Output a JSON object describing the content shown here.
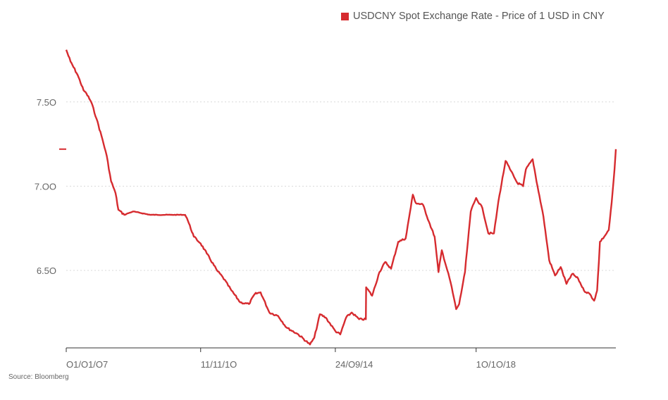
{
  "legend": {
    "label": "USDCNY Spot Exchange Rate - Price of 1 USD in CNY"
  },
  "source": "Source: Bloomberg",
  "colors": {
    "series": "#d62b2f",
    "axis": "#333333",
    "grid": "#d9d9d9",
    "text": "#666666"
  },
  "chart_data": {
    "type": "line",
    "title": "",
    "xlabel": "",
    "ylabel": "",
    "ylim": [
      6.04,
      7.98
    ],
    "xlim": [
      "2007-01-01",
      "2023-01-01"
    ],
    "y_ticks": [
      {
        "value": 6.5,
        "label": "6.5O"
      },
      {
        "value": 7.0,
        "label": "7.OO"
      },
      {
        "value": 7.5,
        "label": "7.5O"
      }
    ],
    "x_ticks": [
      {
        "date": "2007-01-01",
        "label": "O1/O1/O7"
      },
      {
        "date": "2010-11-11",
        "label": "11/11/1O"
      },
      {
        "date": "2014-09-24",
        "label": "24/O9/14"
      },
      {
        "date": "2018-10-10",
        "label": "1O/1O/18"
      }
    ],
    "grid": true,
    "legend_position": "top-right",
    "latest_marker_value": 7.22,
    "series": [
      {
        "name": "USDCNY Spot Exchange Rate - Price of 1 USD in CNY",
        "points": [
          [
            "2007-01-01",
            7.81
          ],
          [
            "2007-02-15",
            7.74
          ],
          [
            "2007-05-01",
            7.66
          ],
          [
            "2007-07-01",
            7.57
          ],
          [
            "2007-08-01",
            7.55
          ],
          [
            "2007-09-20",
            7.5
          ],
          [
            "2007-11-15",
            7.4
          ],
          [
            "2008-01-15",
            7.28
          ],
          [
            "2008-03-01",
            7.18
          ],
          [
            "2008-04-15",
            7.03
          ],
          [
            "2008-06-01",
            6.96
          ],
          [
            "2008-07-01",
            6.86
          ],
          [
            "2008-09-01",
            6.83
          ],
          [
            "2008-12-01",
            6.85
          ],
          [
            "2009-06-01",
            6.83
          ],
          [
            "2010-01-01",
            6.83
          ],
          [
            "2010-06-01",
            6.83
          ],
          [
            "2010-06-20",
            6.81
          ],
          [
            "2010-07-10",
            6.78
          ],
          [
            "2010-09-01",
            6.7
          ],
          [
            "2010-11-11",
            6.66
          ],
          [
            "2011-01-15",
            6.6
          ],
          [
            "2011-05-01",
            6.5
          ],
          [
            "2011-07-01",
            6.46
          ],
          [
            "2011-10-01",
            6.38
          ],
          [
            "2012-01-01",
            6.31
          ],
          [
            "2012-04-01",
            6.3
          ],
          [
            "2012-06-01",
            6.36
          ],
          [
            "2012-08-01",
            6.37
          ],
          [
            "2012-11-01",
            6.25
          ],
          [
            "2013-02-01",
            6.23
          ],
          [
            "2013-05-01",
            6.16
          ],
          [
            "2013-09-01",
            6.12
          ],
          [
            "2014-01-01",
            6.06
          ],
          [
            "2014-02-15",
            6.1
          ],
          [
            "2014-04-15",
            6.24
          ],
          [
            "2014-06-15",
            6.22
          ],
          [
            "2014-09-24",
            6.14
          ],
          [
            "2014-11-15",
            6.12
          ],
          [
            "2015-01-15",
            6.22
          ],
          [
            "2015-03-15",
            6.25
          ],
          [
            "2015-06-01",
            6.21
          ],
          [
            "2015-08-10",
            6.21
          ],
          [
            "2015-08-13",
            6.4
          ],
          [
            "2015-10-15",
            6.35
          ],
          [
            "2015-12-31",
            6.49
          ],
          [
            "2016-03-01",
            6.55
          ],
          [
            "2016-05-01",
            6.51
          ],
          [
            "2016-07-15",
            6.67
          ],
          [
            "2016-10-01",
            6.69
          ],
          [
            "2016-12-15",
            6.95
          ],
          [
            "2017-01-15",
            6.9
          ],
          [
            "2017-04-01",
            6.89
          ],
          [
            "2017-06-01",
            6.79
          ],
          [
            "2017-08-01",
            6.7
          ],
          [
            "2017-09-10",
            6.49
          ],
          [
            "2017-10-15",
            6.62
          ],
          [
            "2018-01-15",
            6.43
          ],
          [
            "2018-03-15",
            6.27
          ],
          [
            "2018-04-15",
            6.3
          ],
          [
            "2018-06-15",
            6.49
          ],
          [
            "2018-08-15",
            6.85
          ],
          [
            "2018-10-10",
            6.93
          ],
          [
            "2018-12-15",
            6.87
          ],
          [
            "2019-02-15",
            6.72
          ],
          [
            "2019-04-15",
            6.72
          ],
          [
            "2019-06-01",
            6.91
          ],
          [
            "2019-08-15",
            7.15
          ],
          [
            "2019-10-01",
            7.1
          ],
          [
            "2019-12-15",
            7.02
          ],
          [
            "2020-02-15",
            7.0
          ],
          [
            "2020-03-15",
            7.1
          ],
          [
            "2020-05-25",
            7.16
          ],
          [
            "2020-07-15",
            7.0
          ],
          [
            "2020-09-15",
            6.82
          ],
          [
            "2020-11-15",
            6.56
          ],
          [
            "2021-01-15",
            6.47
          ],
          [
            "2021-03-15",
            6.52
          ],
          [
            "2021-05-15",
            6.42
          ],
          [
            "2021-07-15",
            6.48
          ],
          [
            "2021-09-15",
            6.45
          ],
          [
            "2021-11-15",
            6.38
          ],
          [
            "2022-01-15",
            6.36
          ],
          [
            "2022-03-01",
            6.32
          ],
          [
            "2022-04-01",
            6.38
          ],
          [
            "2022-04-20",
            6.55
          ],
          [
            "2022-05-01",
            6.67
          ],
          [
            "2022-06-15",
            6.7
          ],
          [
            "2022-08-01",
            6.74
          ],
          [
            "2022-09-01",
            6.9
          ],
          [
            "2022-10-01",
            7.1
          ],
          [
            "2022-10-15",
            7.22
          ]
        ]
      }
    ]
  }
}
